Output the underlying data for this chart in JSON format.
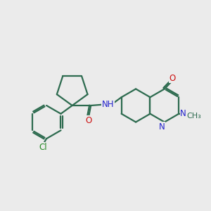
{
  "background_color": "#ebebeb",
  "bond_color": "#2d6b4f",
  "n_color": "#2222cc",
  "o_color": "#cc1111",
  "cl_color": "#228822",
  "lw": 1.6,
  "fs": 8.5,
  "fig_w": 3.0,
  "fig_h": 3.0,
  "dpi": 100,
  "xlim": [
    0,
    10
  ],
  "ylim": [
    0,
    10
  ]
}
